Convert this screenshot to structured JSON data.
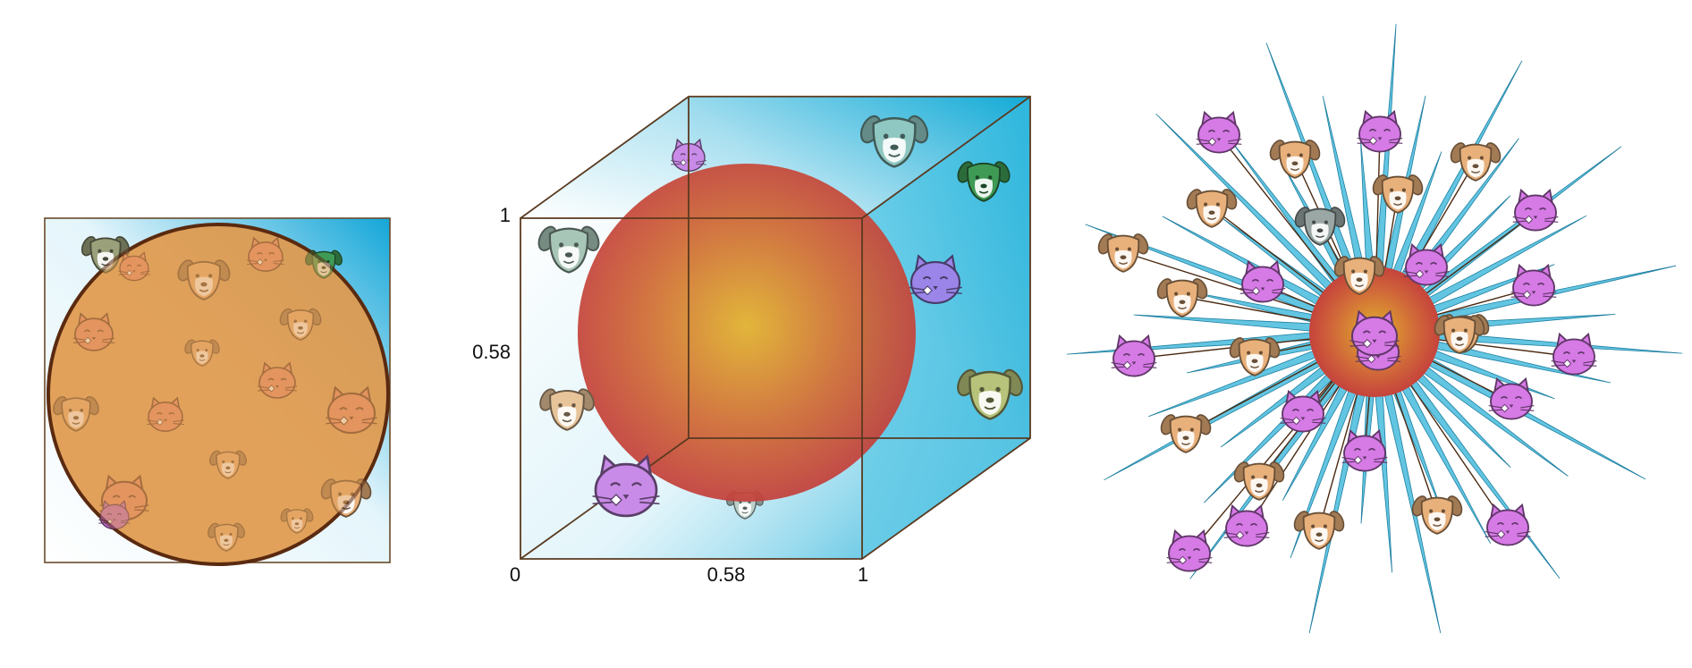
{
  "colors": {
    "cube_blue": "#12aad6",
    "square_blue": "#14a6d8",
    "disc_orange": "#e09a4e",
    "disc_edge": "#5a2a10",
    "sphere_inner": "#e2b12c",
    "sphere_outer": "#c23a3c",
    "cube_edge": "#5a3a20",
    "spike_blue": "#3bb7da",
    "spike_edge": "#4a2a12",
    "cat_purple": "#d67ae6",
    "cat_violet": "#9b85e8",
    "dog_tan": "#e8b07a",
    "dog_green": "#3f9a55"
  },
  "middle": {
    "axis_labels": {
      "x_zero": "0",
      "x_mid": "0.58",
      "x_one": "1",
      "y_mid": "0.58",
      "y_one": "1"
    }
  },
  "icons": {
    "left_square": [
      {
        "kind": "dog",
        "tint": "#9aa07a"
      },
      {
        "kind": "dog",
        "tint": "#3f9a55"
      },
      {
        "kind": "dog",
        "tint": "#e8b07a"
      },
      {
        "kind": "cat",
        "tint": "#e89070"
      },
      {
        "kind": "cat",
        "tint": "#e89070"
      },
      {
        "kind": "dog",
        "tint": "#e8b07a"
      },
      {
        "kind": "cat",
        "tint": "#e89070"
      },
      {
        "kind": "dog",
        "tint": "#e8b07a"
      },
      {
        "kind": "dog",
        "tint": "#e8b07a"
      },
      {
        "kind": "cat",
        "tint": "#e89070"
      },
      {
        "kind": "dog",
        "tint": "#e8b07a"
      },
      {
        "kind": "cat",
        "tint": "#e89070"
      },
      {
        "kind": "cat",
        "tint": "#e89070"
      },
      {
        "kind": "dog",
        "tint": "#e8b07a"
      },
      {
        "kind": "dog",
        "tint": "#e8b07a"
      },
      {
        "kind": "cat",
        "tint": "#e89070"
      },
      {
        "kind": "dog",
        "tint": "#e8b07a"
      },
      {
        "kind": "cat",
        "tint": "#c070d0"
      }
    ],
    "middle_cube": [
      {
        "kind": "cat",
        "tint": "#c98be8"
      },
      {
        "kind": "dog",
        "tint": "#8fc7c2"
      },
      {
        "kind": "dog",
        "tint": "#3f9a55"
      },
      {
        "kind": "dog",
        "tint": "#a8c6b8"
      },
      {
        "kind": "cat",
        "tint": "#9b85e8"
      },
      {
        "kind": "dog",
        "tint": "#e8c49a"
      },
      {
        "kind": "dog",
        "tint": "#b7c27a"
      },
      {
        "kind": "cat",
        "tint": "#c98be8"
      },
      {
        "kind": "dog",
        "tint": "#bcd0cc"
      }
    ],
    "right_star": [
      {
        "kind": "cat",
        "tint": "#d67ae6"
      },
      {
        "kind": "cat",
        "tint": "#d67ae6"
      },
      {
        "kind": "dog",
        "tint": "#e8b07a"
      },
      {
        "kind": "dog",
        "tint": "#e8b07a"
      },
      {
        "kind": "cat",
        "tint": "#d67ae6"
      },
      {
        "kind": "dog",
        "tint": "#e8b07a"
      },
      {
        "kind": "dog",
        "tint": "#e8b07a"
      },
      {
        "kind": "dog",
        "tint": "#9aa7a4"
      },
      {
        "kind": "dog",
        "tint": "#e8b07a"
      },
      {
        "kind": "dog",
        "tint": "#e8b07a"
      },
      {
        "kind": "cat",
        "tint": "#d67ae6"
      },
      {
        "kind": "cat",
        "tint": "#d67ae6"
      },
      {
        "kind": "cat",
        "tint": "#d67ae6"
      },
      {
        "kind": "dog",
        "tint": "#e8b07a"
      },
      {
        "kind": "dog",
        "tint": "#e8b07a"
      },
      {
        "kind": "cat",
        "tint": "#d67ae6"
      },
      {
        "kind": "dog",
        "tint": "#e8b07a"
      },
      {
        "kind": "cat",
        "tint": "#d67ae6"
      },
      {
        "kind": "cat",
        "tint": "#d67ae6"
      },
      {
        "kind": "cat",
        "tint": "#d67ae6"
      },
      {
        "kind": "dog",
        "tint": "#e8b07a"
      },
      {
        "kind": "cat",
        "tint": "#d67ae6"
      },
      {
        "kind": "dog",
        "tint": "#e8b07a"
      },
      {
        "kind": "cat",
        "tint": "#d67ae6"
      },
      {
        "kind": "dog",
        "tint": "#e8b07a"
      },
      {
        "kind": "dog",
        "tint": "#e8b07a"
      },
      {
        "kind": "cat",
        "tint": "#d67ae6"
      },
      {
        "kind": "dog",
        "tint": "#e8b07a"
      },
      {
        "kind": "cat",
        "tint": "#d67ae6"
      },
      {
        "kind": "cat",
        "tint": "#d67ae6"
      }
    ]
  }
}
